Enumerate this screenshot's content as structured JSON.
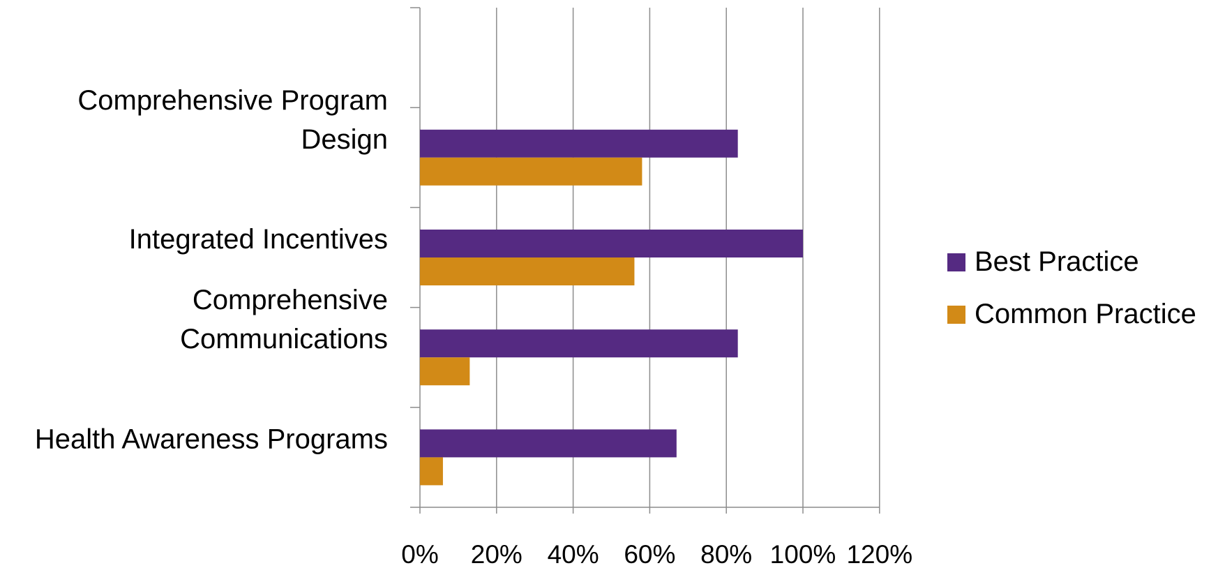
{
  "chart_data": {
    "type": "bar",
    "orientation": "horizontal",
    "categories": [
      [
        "Comprehensive Program",
        "Design"
      ],
      [
        "Integrated Incentives"
      ],
      [
        "Comprehensive",
        "Communications"
      ],
      [
        "Health Awareness Programs"
      ]
    ],
    "series": [
      {
        "name": "Best Practice",
        "color": "#552a82",
        "values": [
          0.83,
          1.0,
          0.83,
          0.67
        ]
      },
      {
        "name": "Common Practice",
        "color": "#d28a17",
        "values": [
          0.58,
          0.56,
          0.13,
          0.06
        ]
      }
    ],
    "xlim": [
      0,
      1.2
    ],
    "x_ticks": [
      "0%",
      "20%",
      "40%",
      "60%",
      "80%",
      "100%",
      "120%"
    ],
    "x_tick_values": [
      0,
      0.2,
      0.4,
      0.6,
      0.8,
      1.0,
      1.2
    ],
    "y_slots": 5,
    "grid": "vertical",
    "legend": "right",
    "title": "",
    "xlabel": "",
    "ylabel": ""
  }
}
